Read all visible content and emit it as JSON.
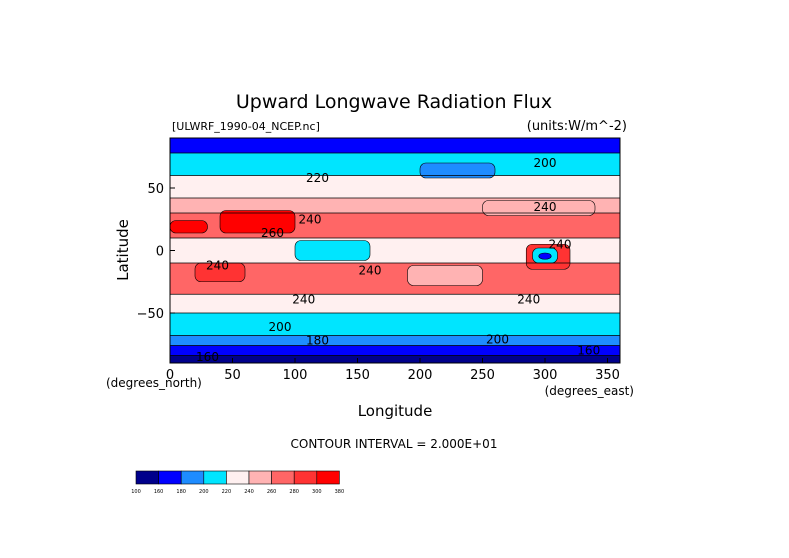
{
  "chart_data": {
    "type": "heatmap",
    "title": "Upward Longwave Radiation Flux",
    "source_label": "[ULWRF_1990-04_NCEP.nc]",
    "units_label": "(units:W/m^-2)",
    "xlabel": "Longitude",
    "ylabel": "Latitude",
    "x_unit_label": "(degrees_east)",
    "y_unit_label": "(degrees_north)",
    "xlim": [
      0,
      360
    ],
    "ylim": [
      -90,
      90
    ],
    "x_ticks": [
      "0",
      "50",
      "100",
      "150",
      "200",
      "250",
      "300",
      "350"
    ],
    "y_ticks": [
      "50",
      "0",
      "−50"
    ],
    "contour_interval_label": "CONTOUR INTERVAL = 2.000E+01",
    "contour_labels": [
      {
        "text": "200",
        "lon": 300,
        "lat": 70
      },
      {
        "text": "220",
        "lon": 118,
        "lat": 58
      },
      {
        "text": "240",
        "lon": 300,
        "lat": 35
      },
      {
        "text": "240",
        "lon": 112,
        "lat": 25
      },
      {
        "text": "260",
        "lon": 82,
        "lat": 14
      },
      {
        "text": "240",
        "lon": 312,
        "lat": 5
      },
      {
        "text": "240",
        "lon": 38,
        "lat": -12
      },
      {
        "text": "240",
        "lon": 160,
        "lat": -16
      },
      {
        "text": "240",
        "lon": 107,
        "lat": -39
      },
      {
        "text": "240",
        "lon": 287,
        "lat": -39
      },
      {
        "text": "200",
        "lon": 88,
        "lat": -61
      },
      {
        "text": "180",
        "lon": 118,
        "lat": -72
      },
      {
        "text": "200",
        "lon": 262,
        "lat": -71
      },
      {
        "text": "160",
        "lon": 30,
        "lat": -85
      },
      {
        "text": "160",
        "lon": 335,
        "lat": -80
      }
    ],
    "legend": {
      "levels": [
        "100",
        "160",
        "180",
        "200",
        "220",
        "240",
        "260",
        "280",
        "300",
        "380"
      ],
      "colors": [
        "#00008b",
        "#0000ff",
        "#1e8cff",
        "#00e5ff",
        "#fff0f0",
        "#ffb3b3",
        "#ff6666",
        "#ff3333",
        "#ff0000"
      ]
    },
    "bands": [
      {
        "lat_from": 90,
        "lat_to": 78,
        "color": "#0000ff"
      },
      {
        "lat_from": 78,
        "lat_to": 60,
        "color": "#00e5ff"
      },
      {
        "lat_from": 60,
        "lat_to": 42,
        "color": "#fff0f0"
      },
      {
        "lat_from": 42,
        "lat_to": 30,
        "color": "#ffb3b3"
      },
      {
        "lat_from": 30,
        "lat_to": 10,
        "color": "#ff6666"
      },
      {
        "lat_from": 10,
        "lat_to": -10,
        "color": "#fff0f0"
      },
      {
        "lat_from": -10,
        "lat_to": -35,
        "color": "#ff6666"
      },
      {
        "lat_from": -35,
        "lat_to": -50,
        "color": "#fff0f0"
      },
      {
        "lat_from": -50,
        "lat_to": -68,
        "color": "#00e5ff"
      },
      {
        "lat_from": -68,
        "lat_to": -76,
        "color": "#1e8cff"
      },
      {
        "lat_from": -76,
        "lat_to": -84,
        "color": "#0000ff"
      },
      {
        "lat_from": -84,
        "lat_to": -90,
        "color": "#00008b"
      }
    ],
    "patches": [
      {
        "lon_from": 40,
        "lon_to": 100,
        "lat_from": 32,
        "lat_to": 14,
        "color": "#ff0000"
      },
      {
        "lon_from": 0,
        "lon_to": 30,
        "lat_from": 24,
        "lat_to": 14,
        "color": "#ff0000"
      },
      {
        "lon_from": 285,
        "lon_to": 320,
        "lat_from": 5,
        "lat_to": -15,
        "color": "#ff3333"
      },
      {
        "lon_from": 290,
        "lon_to": 310,
        "lat_from": 2,
        "lat_to": -10,
        "color": "#00e5ff"
      },
      {
        "lon_from": 295,
        "lon_to": 305,
        "lat_from": -2,
        "lat_to": -7,
        "color": "#0000ff"
      },
      {
        "lon_from": 250,
        "lon_to": 340,
        "lat_from": 40,
        "lat_to": 28,
        "color": "#ffb3b3"
      },
      {
        "lon_from": 100,
        "lon_to": 160,
        "lat_from": 8,
        "lat_to": -8,
        "color": "#00e5ff"
      },
      {
        "lon_from": 200,
        "lon_to": 260,
        "lat_from": 70,
        "lat_to": 58,
        "color": "#1e8cff"
      },
      {
        "lon_from": 20,
        "lon_to": 60,
        "lat_from": -10,
        "lat_to": -25,
        "color": "#ff3333"
      },
      {
        "lon_from": 190,
        "lon_to": 250,
        "lat_from": -12,
        "lat_to": -28,
        "color": "#ffb3b3"
      }
    ]
  }
}
